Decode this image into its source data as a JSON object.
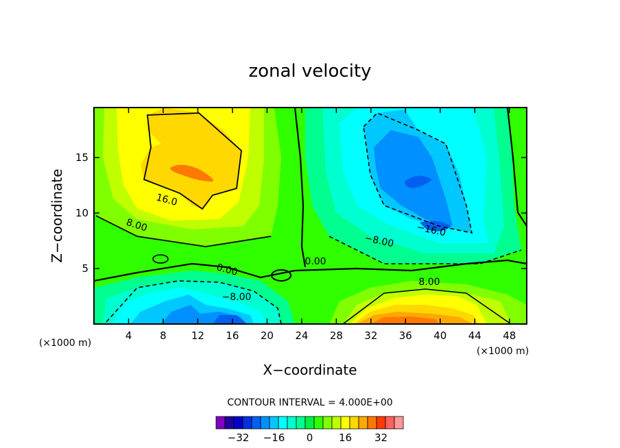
{
  "chart_data": {
    "type": "heatmap",
    "title": "zonal velocity",
    "xlabel": "X−coordinate",
    "ylabel": "Z−coordinate",
    "x_unit_left": "(×1000 m)",
    "x_unit_right": "(×1000 m)",
    "xlim": [
      0,
      50
    ],
    "ylim": [
      0,
      19.5
    ],
    "x_ticks": [
      4,
      8,
      12,
      16,
      20,
      24,
      28,
      32,
      36,
      40,
      44,
      48
    ],
    "y_ticks": [
      5,
      10,
      15
    ],
    "contour_interval_text": "CONTOUR INTERVAL = 4.000E+00",
    "contour_labels": [
      "16.0",
      "8.00",
      "0.00",
      "−8.00",
      "0.00",
      "−8.00",
      "−16.0",
      "8.00"
    ],
    "colorbar": {
      "levels": [
        -40,
        -36,
        -32,
        -28,
        -24,
        -20,
        -16,
        -12,
        -8,
        -4,
        0,
        4,
        8,
        12,
        16,
        20,
        24,
        28,
        32,
        36,
        40
      ],
      "colors": [
        "#8000c0",
        "#2000a0",
        "#0000c8",
        "#0030e0",
        "#0060f0",
        "#0090ff",
        "#00c8ff",
        "#00ffff",
        "#00ffd0",
        "#00ff90",
        "#00f040",
        "#30ff00",
        "#80ff00",
        "#c0ff00",
        "#ffff00",
        "#ffd800",
        "#ffa800",
        "#ff7800",
        "#ff3c00",
        "#ff6060",
        "#ff9898"
      ],
      "tick_labels": [
        "−32",
        "−16",
        "0",
        "16",
        "32"
      ]
    },
    "features": [
      {
        "x": 11,
        "z": 15.5,
        "value": 26
      },
      {
        "x": 38,
        "z": 12.5,
        "value": -26
      },
      {
        "x": 15,
        "z": 1,
        "value": -24
      },
      {
        "x": 36,
        "z": 0.8,
        "value": 28
      }
    ]
  }
}
